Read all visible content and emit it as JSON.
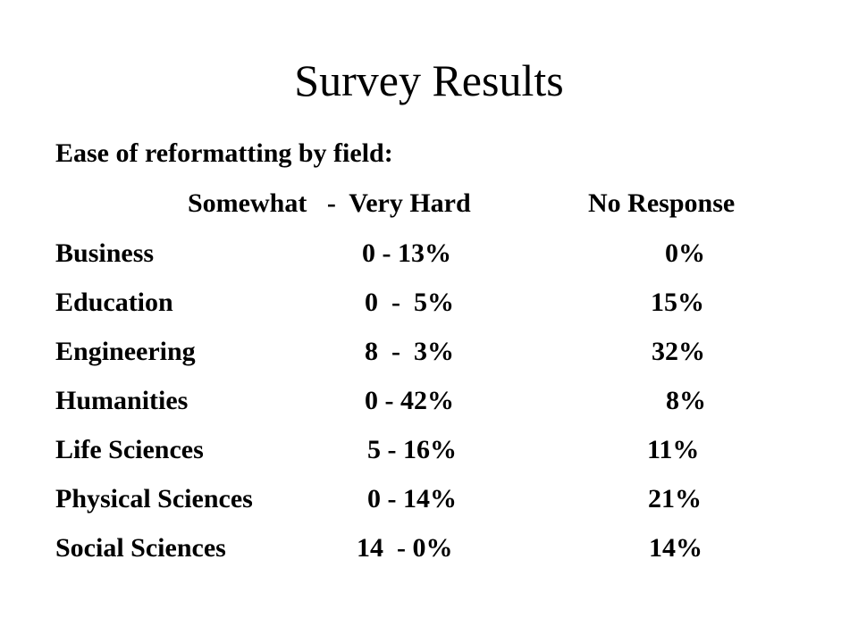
{
  "title": "Survey Results",
  "subtitle": "Ease of reformatting by field:",
  "table": {
    "header_range": "Somewhat   -  Very Hard",
    "header_no_response": "No Response",
    "rows": [
      {
        "field": "Business",
        "range": "0 - 13%",
        "no_response": "0%"
      },
      {
        "field": "Education",
        "range": "0  -  5%",
        "no_response": "15%"
      },
      {
        "field": "Engineering",
        "range": "8  -  3%",
        "no_response": "32%"
      },
      {
        "field": "Humanities",
        "range": "0 - 42%",
        "no_response": "8%"
      },
      {
        "field": "Life Sciences",
        "range": "5 - 16%",
        "no_response": "11%"
      },
      {
        "field": "Physical Sciences",
        "range": "0 - 14%",
        "no_response": "21%"
      },
      {
        "field": "Social Sciences",
        "range": "14  - 0%",
        "no_response": "14%"
      }
    ]
  }
}
